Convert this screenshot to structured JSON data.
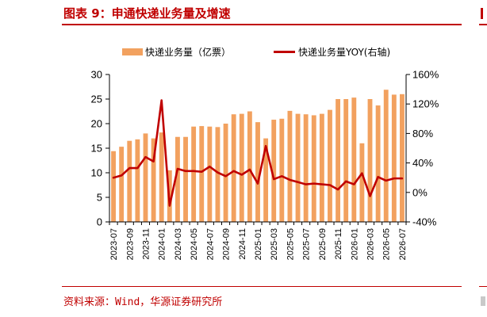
{
  "header": {
    "title": "图表 9：申通快递业务量及增速"
  },
  "footer": {
    "source": "资料来源：Wind，华源证券研究所"
  },
  "colors": {
    "accent": "#c00000",
    "bar": "#f2a15f",
    "line": "#c00000"
  },
  "chart_data": {
    "type": "bar",
    "title": "",
    "legend_position": "top",
    "grid": false,
    "x_tick_labels": [
      "2023-07",
      "2023-09",
      "2023-11",
      "2024-01",
      "2024-03",
      "2024-05",
      "2024-07",
      "2024-09",
      "2024-11",
      "2025-01",
      "2025-03",
      "2025-05",
      "2025-07",
      "2025-09",
      "2025-11",
      "2026-01",
      "2026-03",
      "2026-05",
      "2026-07"
    ],
    "categories": [
      "2023-07",
      "2023-08",
      "2023-09",
      "2023-10",
      "2023-11",
      "2023-12",
      "2024-01",
      "2024-02",
      "2024-03",
      "2024-04",
      "2024-05",
      "2024-06",
      "2024-07",
      "2024-08",
      "2024-09",
      "2024-10",
      "2024-11",
      "2024-12",
      "2025-01",
      "2025-02",
      "2025-03",
      "2025-04",
      "2025-05",
      "2025-06",
      "2025-07",
      "2025-08",
      "2025-09",
      "2025-10",
      "2025-11",
      "2025-12",
      "2026-01",
      "2026-02",
      "2026-03",
      "2026-04",
      "2026-05",
      "2026-06",
      "2026-07"
    ],
    "y_left": {
      "ylim": [
        0,
        30
      ],
      "ticks": [
        "0",
        "5",
        "10",
        "15",
        "20",
        "25",
        "30"
      ]
    },
    "y_right": {
      "ylim": [
        -40,
        160
      ],
      "ticks": [
        "-40%",
        "0%",
        "40%",
        "80%",
        "120%",
        "160%"
      ]
    },
    "series": [
      {
        "name": "快递业务量（亿票）",
        "type": "bar",
        "axis": "left",
        "values": [
          14.4,
          15.3,
          16.5,
          16.8,
          18.0,
          17.0,
          18.2,
          10.5,
          17.3,
          17.3,
          19.4,
          19.5,
          19.4,
          19.3,
          20.0,
          21.9,
          22.0,
          22.5,
          20.3,
          17.0,
          20.8,
          21.0,
          22.6,
          22.0,
          21.9,
          21.7,
          22.0,
          22.8,
          25.0,
          25.0,
          25.3,
          16.0,
          25.0,
          23.7,
          26.9,
          25.9,
          26.0
        ]
      },
      {
        "name": "快递业务量YOY(右轴)",
        "type": "line",
        "axis": "right",
        "values": [
          20,
          23,
          33,
          33,
          48,
          42,
          125,
          -18,
          32,
          29,
          29,
          28,
          35,
          27,
          22,
          29,
          24,
          31,
          12,
          63,
          18,
          22,
          17,
          14,
          11,
          12,
          11,
          10,
          4,
          15,
          11,
          26,
          -5,
          21,
          16,
          19,
          19
        ]
      }
    ]
  }
}
